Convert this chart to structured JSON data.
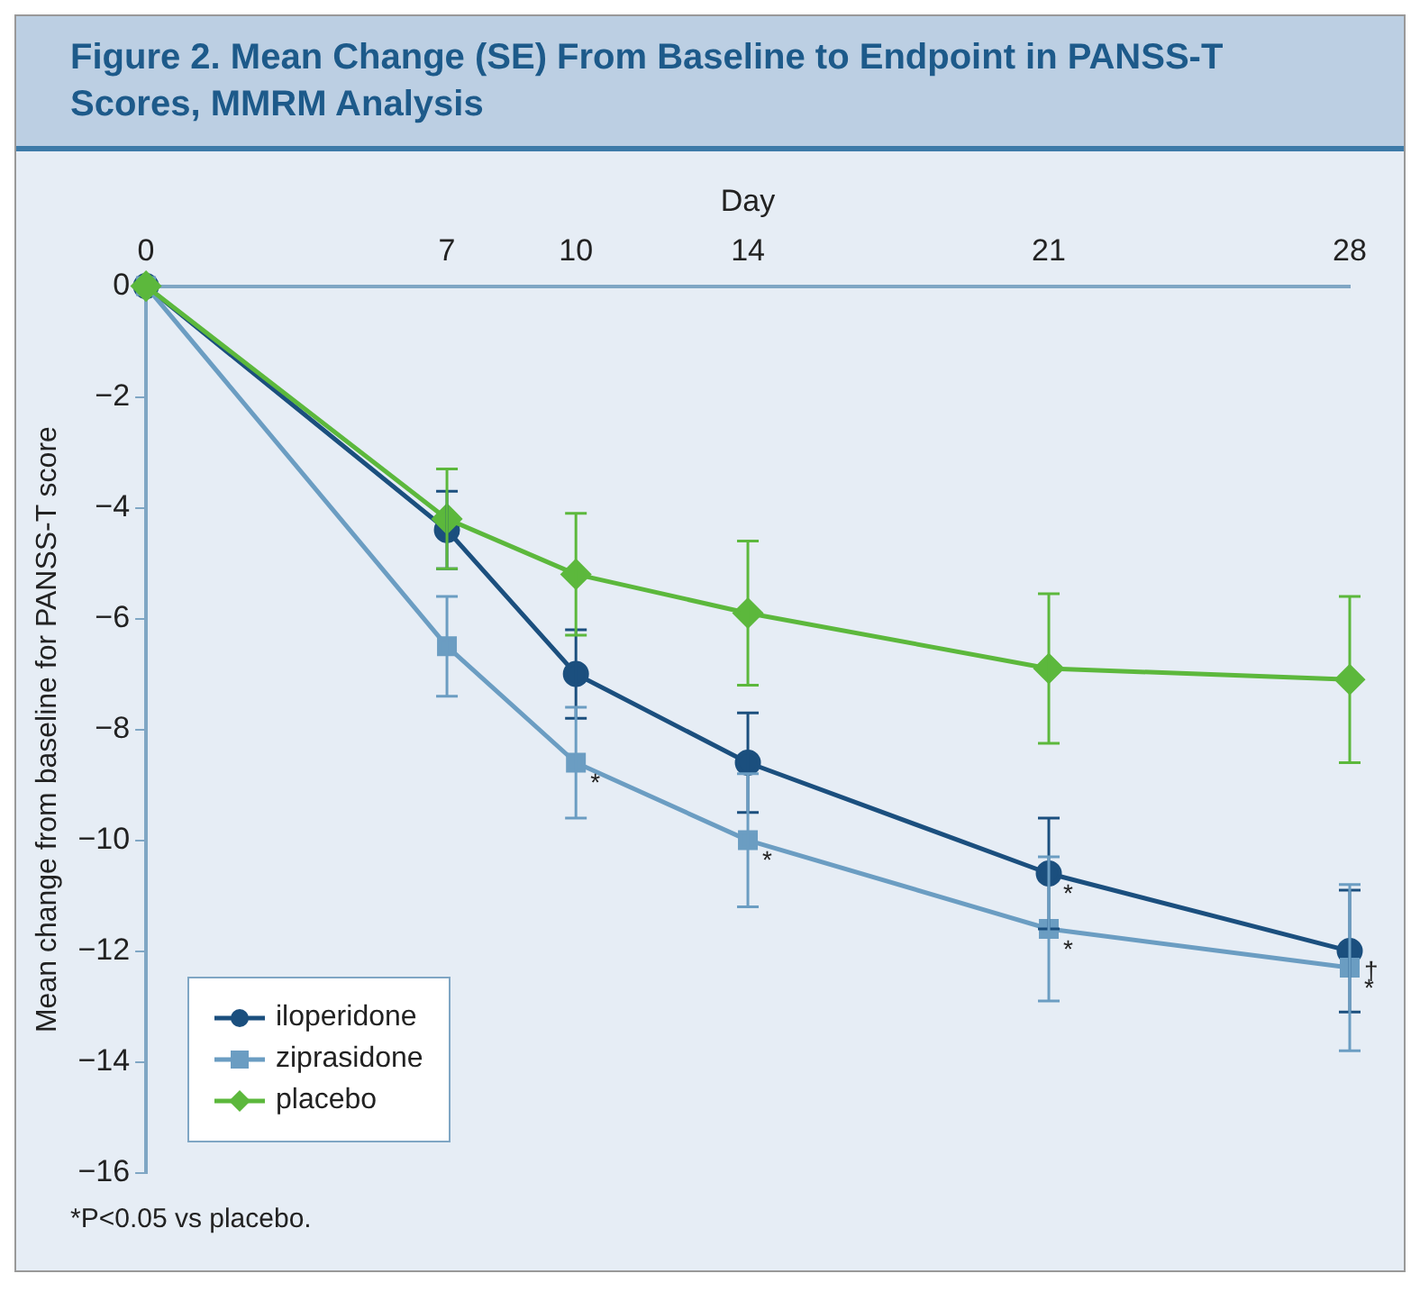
{
  "chart_data": {
    "type": "line",
    "title": "Figure 2. Mean Change (SE) From Baseline to Endpoint in PANSS-T Scores, MMRM Analysis",
    "xlabel": "Day",
    "ylabel": "Mean change from baseline for PANSS-T score",
    "x": [
      0,
      7,
      10,
      14,
      21,
      28
    ],
    "series": [
      {
        "name": "iloperidone",
        "color": "#1b4f7e",
        "marker": "circle",
        "values": [
          0,
          -4.4,
          -7.0,
          -8.6,
          -10.6,
          -12.0
        ],
        "errors": [
          null,
          0.7,
          0.8,
          0.9,
          1.0,
          1.1
        ]
      },
      {
        "name": "ziprasidone",
        "color": "#6b9dc2",
        "marker": "square",
        "values": [
          0,
          -6.5,
          -8.6,
          -10.0,
          -11.6,
          -12.3
        ],
        "errors": [
          null,
          0.9,
          1.0,
          1.2,
          1.3,
          1.5
        ]
      },
      {
        "name": "placebo",
        "color": "#5cb83c",
        "marker": "diamond",
        "values": [
          0,
          -4.2,
          -5.2,
          -5.9,
          -6.9,
          -7.1
        ],
        "errors": [
          null,
          0.9,
          1.1,
          1.3,
          1.35,
          1.5
        ]
      }
    ],
    "xlim": [
      0,
      28
    ],
    "xticks": [
      0,
      7,
      10,
      14,
      21,
      28
    ],
    "ylim": [
      -16,
      0
    ],
    "yticks": [
      0,
      -2,
      -4,
      -6,
      -8,
      -10,
      -12,
      -14,
      -16
    ],
    "grid": false,
    "legend": "bottom left",
    "line_style": "solid",
    "annotations": [
      {
        "text": "*",
        "x": 10,
        "y": -8.6
      },
      {
        "text": "*",
        "x": 14,
        "y": -10.0
      },
      {
        "text": "*",
        "x": 21,
        "y": -10.6
      },
      {
        "text": "*",
        "x": 21,
        "y": -11.6
      },
      {
        "text": "†",
        "x": 28,
        "y": -12.0
      },
      {
        "text": "*",
        "x": 28,
        "y": -12.3
      },
      "*P<0.05 vs placebo."
    ]
  }
}
